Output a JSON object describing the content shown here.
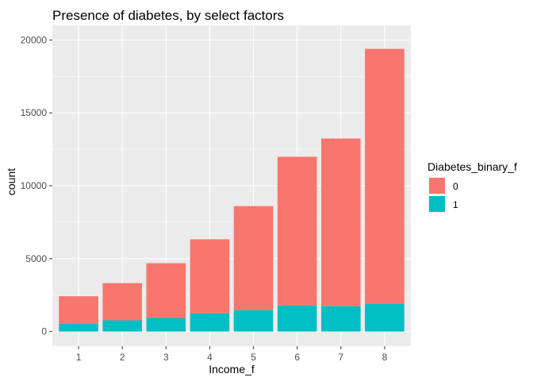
{
  "chart_data": {
    "type": "bar",
    "stacked": true,
    "title": "Presence of diabetes, by select factors",
    "xlabel": "Income_f",
    "ylabel": "count",
    "categories": [
      "1",
      "2",
      "3",
      "4",
      "5",
      "6",
      "7",
      "8"
    ],
    "series": [
      {
        "name": "0",
        "color": "#F8766D",
        "values": [
          1900,
          2550,
          3760,
          5080,
          7140,
          10200,
          11500,
          17500
        ]
      },
      {
        "name": "1",
        "color": "#00BFC4",
        "values": [
          520,
          770,
          930,
          1250,
          1460,
          1790,
          1740,
          1890
        ]
      }
    ],
    "ylim": [
      -1000,
      21000
    ],
    "yticks": [
      0,
      5000,
      10000,
      15000,
      20000
    ],
    "grid": true,
    "legend": {
      "title": "Diabetes_binary_f",
      "position": "right"
    },
    "panel_background": "#EBEBEB",
    "grid_color": "#FFFFFF"
  }
}
